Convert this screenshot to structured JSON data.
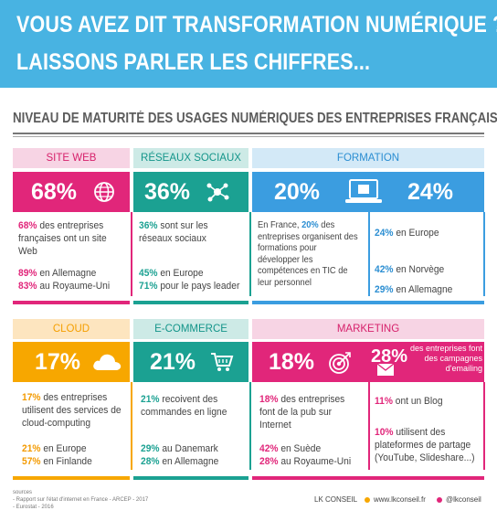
{
  "header": {
    "line1": "VOUS AVEZ DIT TRANSFORMATION NUMÉRIQUE ?",
    "line2": "LAISSONS PARLER LES CHIFFRES..."
  },
  "section_title": "NIVEAU DE MATURITÉ DES USAGES NUMÉRIQUES DES ENTREPRISES FRANÇAISES",
  "colors": {
    "header_blue": "#48b3e2",
    "pink": "#e1267a",
    "teal": "#1ba192",
    "blue": "#3b9de0",
    "orange": "#f7a700"
  },
  "site_web": {
    "label": "SITE WEB",
    "value": "68%",
    "icon": "globe-icon",
    "desc_pct": "68%",
    "desc": "des entreprises françaises ont un site Web",
    "de_pct": "89%",
    "de": "en Allemagne",
    "uk_pct": "83%",
    "uk": "au Royaume-Uni"
  },
  "reseaux": {
    "label": "RÉSEAUX SOCIAUX",
    "value": "36%",
    "icon": "network-icon",
    "desc_pct": "36%",
    "desc": "sont sur les réseaux sociaux",
    "eu_pct": "45%",
    "eu": "en Europe",
    "lead_pct": "71%",
    "lead": "pour le pays leader"
  },
  "formation": {
    "label": "FORMATION",
    "value_fr": "20%",
    "value_eu": "24%",
    "icon": "laptop-icon",
    "desc_intro": "En France,",
    "desc_pct": "20%",
    "desc": "des entreprises organisent des formations pour développer les compétences en TIC de leur personnel",
    "eu_pct": "24%",
    "eu": "en Europe",
    "no_pct": "42%",
    "no": "en Norvège",
    "de_pct": "29%",
    "de": "en Allemagne"
  },
  "cloud": {
    "label": "CLOUD",
    "value": "17%",
    "icon": "cloud-icon",
    "desc_pct": "17%",
    "desc": "des entreprises utilisent des services de cloud-computing",
    "eu_pct": "21%",
    "eu": "en Europe",
    "fi_pct": "57%",
    "fi": "en Finlande"
  },
  "ecommerce": {
    "label": "E-COMMERCE",
    "value": "21%",
    "icon": "cart-icon",
    "desc_pct": "21%",
    "desc": "recoivent des commandes en ligne",
    "dk_pct": "29%",
    "dk": "au Danemark",
    "de_pct": "28%",
    "de": "en Allemagne"
  },
  "marketing": {
    "label": "MARKETING",
    "value": "18%",
    "icon": "target-icon",
    "value2": "28%",
    "value2_desc": "des entreprises font des campagnes d'emailing",
    "icon2": "envelope-icon",
    "desc_pct": "18%",
    "desc": "des entreprises font de la pub sur Internet",
    "se_pct": "42%",
    "se": "en Suède",
    "uk_pct": "28%",
    "uk": "au Royaume-Uni",
    "blog_pct": "11%",
    "blog": "ont un Blog",
    "share_pct": "10%",
    "share": "utilisent des plateformes de partage (YouTube, Slideshare...)"
  },
  "footer": {
    "sources_title": "sources",
    "source1": "- Rapport sur l'état d'internet en France - ARCEP - 2017",
    "source2": "- Eurostat - 2016",
    "brand": "LK CONSEIL",
    "website": "www.lkconseil.fr",
    "twitter": "@lkconseil"
  }
}
